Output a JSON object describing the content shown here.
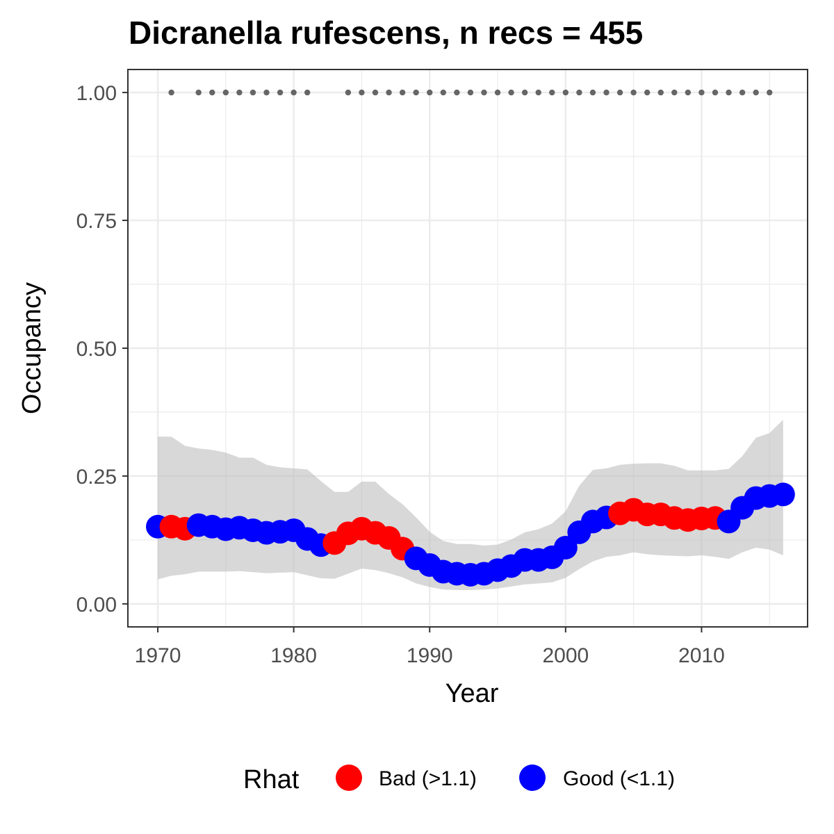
{
  "chart_data": {
    "type": "line",
    "title": "Dicranella rufescens, n recs = 455",
    "xlabel": "Year",
    "ylabel": "Occupancy",
    "xlim": [
      1967.8,
      2017.8
    ],
    "ylim": [
      -0.045,
      1.045
    ],
    "x_ticks": [
      1970,
      1980,
      1990,
      2000,
      2010
    ],
    "x_minor_ticks": [
      1975,
      1985,
      1995,
      2005,
      2015
    ],
    "y_ticks": [
      0.0,
      0.25,
      0.5,
      0.75,
      1.0
    ],
    "y_tick_labels": [
      "0.00",
      "0.25",
      "0.50",
      "0.75",
      "1.00"
    ],
    "y_minor_ticks": [
      0.125,
      0.375,
      0.625,
      0.875
    ],
    "grid": true,
    "legend_position": "bottom",
    "legend": {
      "title": "Rhat",
      "entries": [
        {
          "label": "Bad (>1.1)",
          "color": "#FF0000"
        },
        {
          "label": "Good (<1.1)",
          "color": "#0000FF"
        }
      ]
    },
    "ribbon_color": "#BEBEBE",
    "record_point_color": "#666666",
    "record_years": [
      1971,
      1973,
      1974,
      1975,
      1976,
      1977,
      1978,
      1979,
      1980,
      1981,
      1984,
      1985,
      1986,
      1987,
      1988,
      1989,
      1990,
      1991,
      1992,
      1993,
      1994,
      1995,
      1996,
      1997,
      1998,
      1999,
      2000,
      2001,
      2002,
      2003,
      2004,
      2005,
      2006,
      2007,
      2008,
      2009,
      2010,
      2011,
      2012,
      2013,
      2014,
      2015
    ],
    "record_value": 1.0,
    "series": [
      {
        "x": 1970,
        "y": 0.151,
        "lower": 0.048,
        "upper": 0.327,
        "rhat": "Good"
      },
      {
        "x": 1971,
        "y": 0.151,
        "lower": 0.055,
        "upper": 0.327,
        "rhat": "Bad"
      },
      {
        "x": 1972,
        "y": 0.147,
        "lower": 0.058,
        "upper": 0.309,
        "rhat": "Bad"
      },
      {
        "x": 1973,
        "y": 0.154,
        "lower": 0.063,
        "upper": 0.304,
        "rhat": "Good"
      },
      {
        "x": 1974,
        "y": 0.151,
        "lower": 0.063,
        "upper": 0.301,
        "rhat": "Good"
      },
      {
        "x": 1975,
        "y": 0.146,
        "lower": 0.063,
        "upper": 0.296,
        "rhat": "Good"
      },
      {
        "x": 1976,
        "y": 0.149,
        "lower": 0.064,
        "upper": 0.286,
        "rhat": "Good"
      },
      {
        "x": 1977,
        "y": 0.144,
        "lower": 0.062,
        "upper": 0.286,
        "rhat": "Good"
      },
      {
        "x": 1978,
        "y": 0.139,
        "lower": 0.06,
        "upper": 0.272,
        "rhat": "Good"
      },
      {
        "x": 1979,
        "y": 0.141,
        "lower": 0.061,
        "upper": 0.267,
        "rhat": "Good"
      },
      {
        "x": 1980,
        "y": 0.144,
        "lower": 0.062,
        "upper": 0.265,
        "rhat": "Good"
      },
      {
        "x": 1981,
        "y": 0.127,
        "lower": 0.056,
        "upper": 0.263,
        "rhat": "Good"
      },
      {
        "x": 1982,
        "y": 0.115,
        "lower": 0.05,
        "upper": 0.24,
        "rhat": "Good"
      },
      {
        "x": 1983,
        "y": 0.119,
        "lower": 0.049,
        "upper": 0.219,
        "rhat": "Bad"
      },
      {
        "x": 1984,
        "y": 0.138,
        "lower": 0.059,
        "upper": 0.219,
        "rhat": "Bad"
      },
      {
        "x": 1985,
        "y": 0.147,
        "lower": 0.069,
        "upper": 0.239,
        "rhat": "Bad"
      },
      {
        "x": 1986,
        "y": 0.139,
        "lower": 0.066,
        "upper": 0.239,
        "rhat": "Bad"
      },
      {
        "x": 1987,
        "y": 0.129,
        "lower": 0.06,
        "upper": 0.215,
        "rhat": "Bad"
      },
      {
        "x": 1988,
        "y": 0.108,
        "lower": 0.052,
        "upper": 0.195,
        "rhat": "Bad"
      },
      {
        "x": 1989,
        "y": 0.089,
        "lower": 0.04,
        "upper": 0.169,
        "rhat": "Good"
      },
      {
        "x": 1990,
        "y": 0.076,
        "lower": 0.033,
        "upper": 0.141,
        "rhat": "Good"
      },
      {
        "x": 1991,
        "y": 0.063,
        "lower": 0.028,
        "upper": 0.123,
        "rhat": "Good"
      },
      {
        "x": 1992,
        "y": 0.059,
        "lower": 0.027,
        "upper": 0.117,
        "rhat": "Good"
      },
      {
        "x": 1993,
        "y": 0.057,
        "lower": 0.027,
        "upper": 0.117,
        "rhat": "Good"
      },
      {
        "x": 1994,
        "y": 0.059,
        "lower": 0.028,
        "upper": 0.114,
        "rhat": "Good"
      },
      {
        "x": 1995,
        "y": 0.066,
        "lower": 0.03,
        "upper": 0.116,
        "rhat": "Good"
      },
      {
        "x": 1996,
        "y": 0.074,
        "lower": 0.034,
        "upper": 0.126,
        "rhat": "Good"
      },
      {
        "x": 1997,
        "y": 0.086,
        "lower": 0.038,
        "upper": 0.14,
        "rhat": "Good"
      },
      {
        "x": 1998,
        "y": 0.086,
        "lower": 0.04,
        "upper": 0.146,
        "rhat": "Good"
      },
      {
        "x": 1999,
        "y": 0.091,
        "lower": 0.042,
        "upper": 0.157,
        "rhat": "Good"
      },
      {
        "x": 2000,
        "y": 0.11,
        "lower": 0.051,
        "upper": 0.181,
        "rhat": "Good"
      },
      {
        "x": 2001,
        "y": 0.14,
        "lower": 0.068,
        "upper": 0.231,
        "rhat": "Good"
      },
      {
        "x": 2002,
        "y": 0.161,
        "lower": 0.083,
        "upper": 0.262,
        "rhat": "Good"
      },
      {
        "x": 2003,
        "y": 0.169,
        "lower": 0.092,
        "upper": 0.265,
        "rhat": "Good"
      },
      {
        "x": 2004,
        "y": 0.177,
        "lower": 0.095,
        "upper": 0.272,
        "rhat": "Bad"
      },
      {
        "x": 2005,
        "y": 0.184,
        "lower": 0.101,
        "upper": 0.274,
        "rhat": "Bad"
      },
      {
        "x": 2006,
        "y": 0.175,
        "lower": 0.097,
        "upper": 0.275,
        "rhat": "Bad"
      },
      {
        "x": 2007,
        "y": 0.175,
        "lower": 0.095,
        "upper": 0.275,
        "rhat": "Bad"
      },
      {
        "x": 2008,
        "y": 0.168,
        "lower": 0.094,
        "upper": 0.27,
        "rhat": "Bad"
      },
      {
        "x": 2009,
        "y": 0.164,
        "lower": 0.093,
        "upper": 0.261,
        "rhat": "Bad"
      },
      {
        "x": 2010,
        "y": 0.167,
        "lower": 0.095,
        "upper": 0.261,
        "rhat": "Bad"
      },
      {
        "x": 2011,
        "y": 0.168,
        "lower": 0.092,
        "upper": 0.261,
        "rhat": "Bad"
      },
      {
        "x": 2012,
        "y": 0.161,
        "lower": 0.088,
        "upper": 0.264,
        "rhat": "Good"
      },
      {
        "x": 2013,
        "y": 0.188,
        "lower": 0.101,
        "upper": 0.289,
        "rhat": "Good"
      },
      {
        "x": 2014,
        "y": 0.207,
        "lower": 0.11,
        "upper": 0.325,
        "rhat": "Good"
      },
      {
        "x": 2015,
        "y": 0.211,
        "lower": 0.106,
        "upper": 0.334,
        "rhat": "Good"
      },
      {
        "x": 2016,
        "y": 0.214,
        "lower": 0.095,
        "upper": 0.36,
        "rhat": "Good"
      }
    ]
  }
}
